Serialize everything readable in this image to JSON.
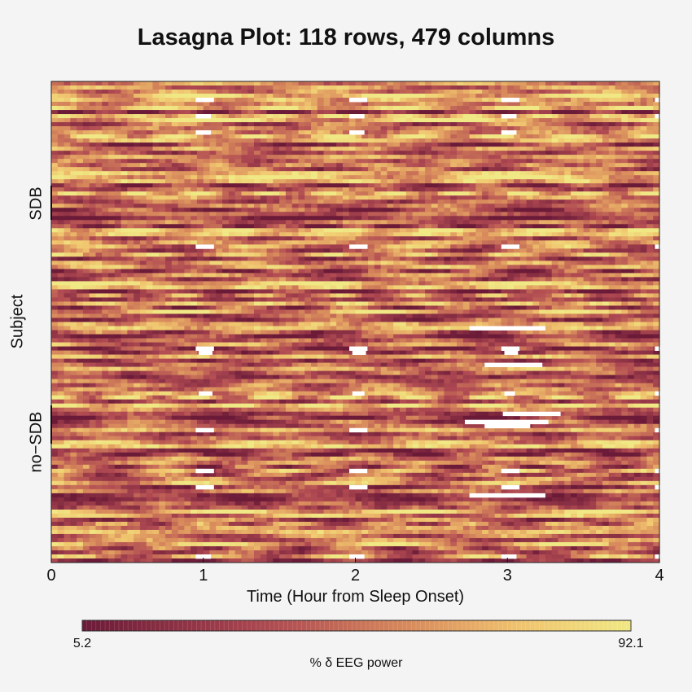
{
  "chart_data": {
    "type": "heatmap",
    "title": "Lasagna Plot: 118 rows, 479 columns",
    "rows": 118,
    "columns": 479,
    "xlabel": "Time (Hour from Sleep Onset)",
    "ylabel": "Subject",
    "group_labels": [
      "SDB",
      "no−SDB"
    ],
    "x_ticks": [
      "0",
      "1",
      "2",
      "3",
      "4"
    ],
    "xlim": [
      0,
      4
    ],
    "colorbar": {
      "min_label": "5.2",
      "max_label": "92.1",
      "title": "% δ EEG power",
      "min": 5.2,
      "max": 92.1
    },
    "colors": {
      "low": "#6b1a38",
      "mid": "#d98c5c",
      "high": "#f0e884",
      "missing": "#ffffff"
    },
    "grid": false,
    "legend": "bottom"
  }
}
